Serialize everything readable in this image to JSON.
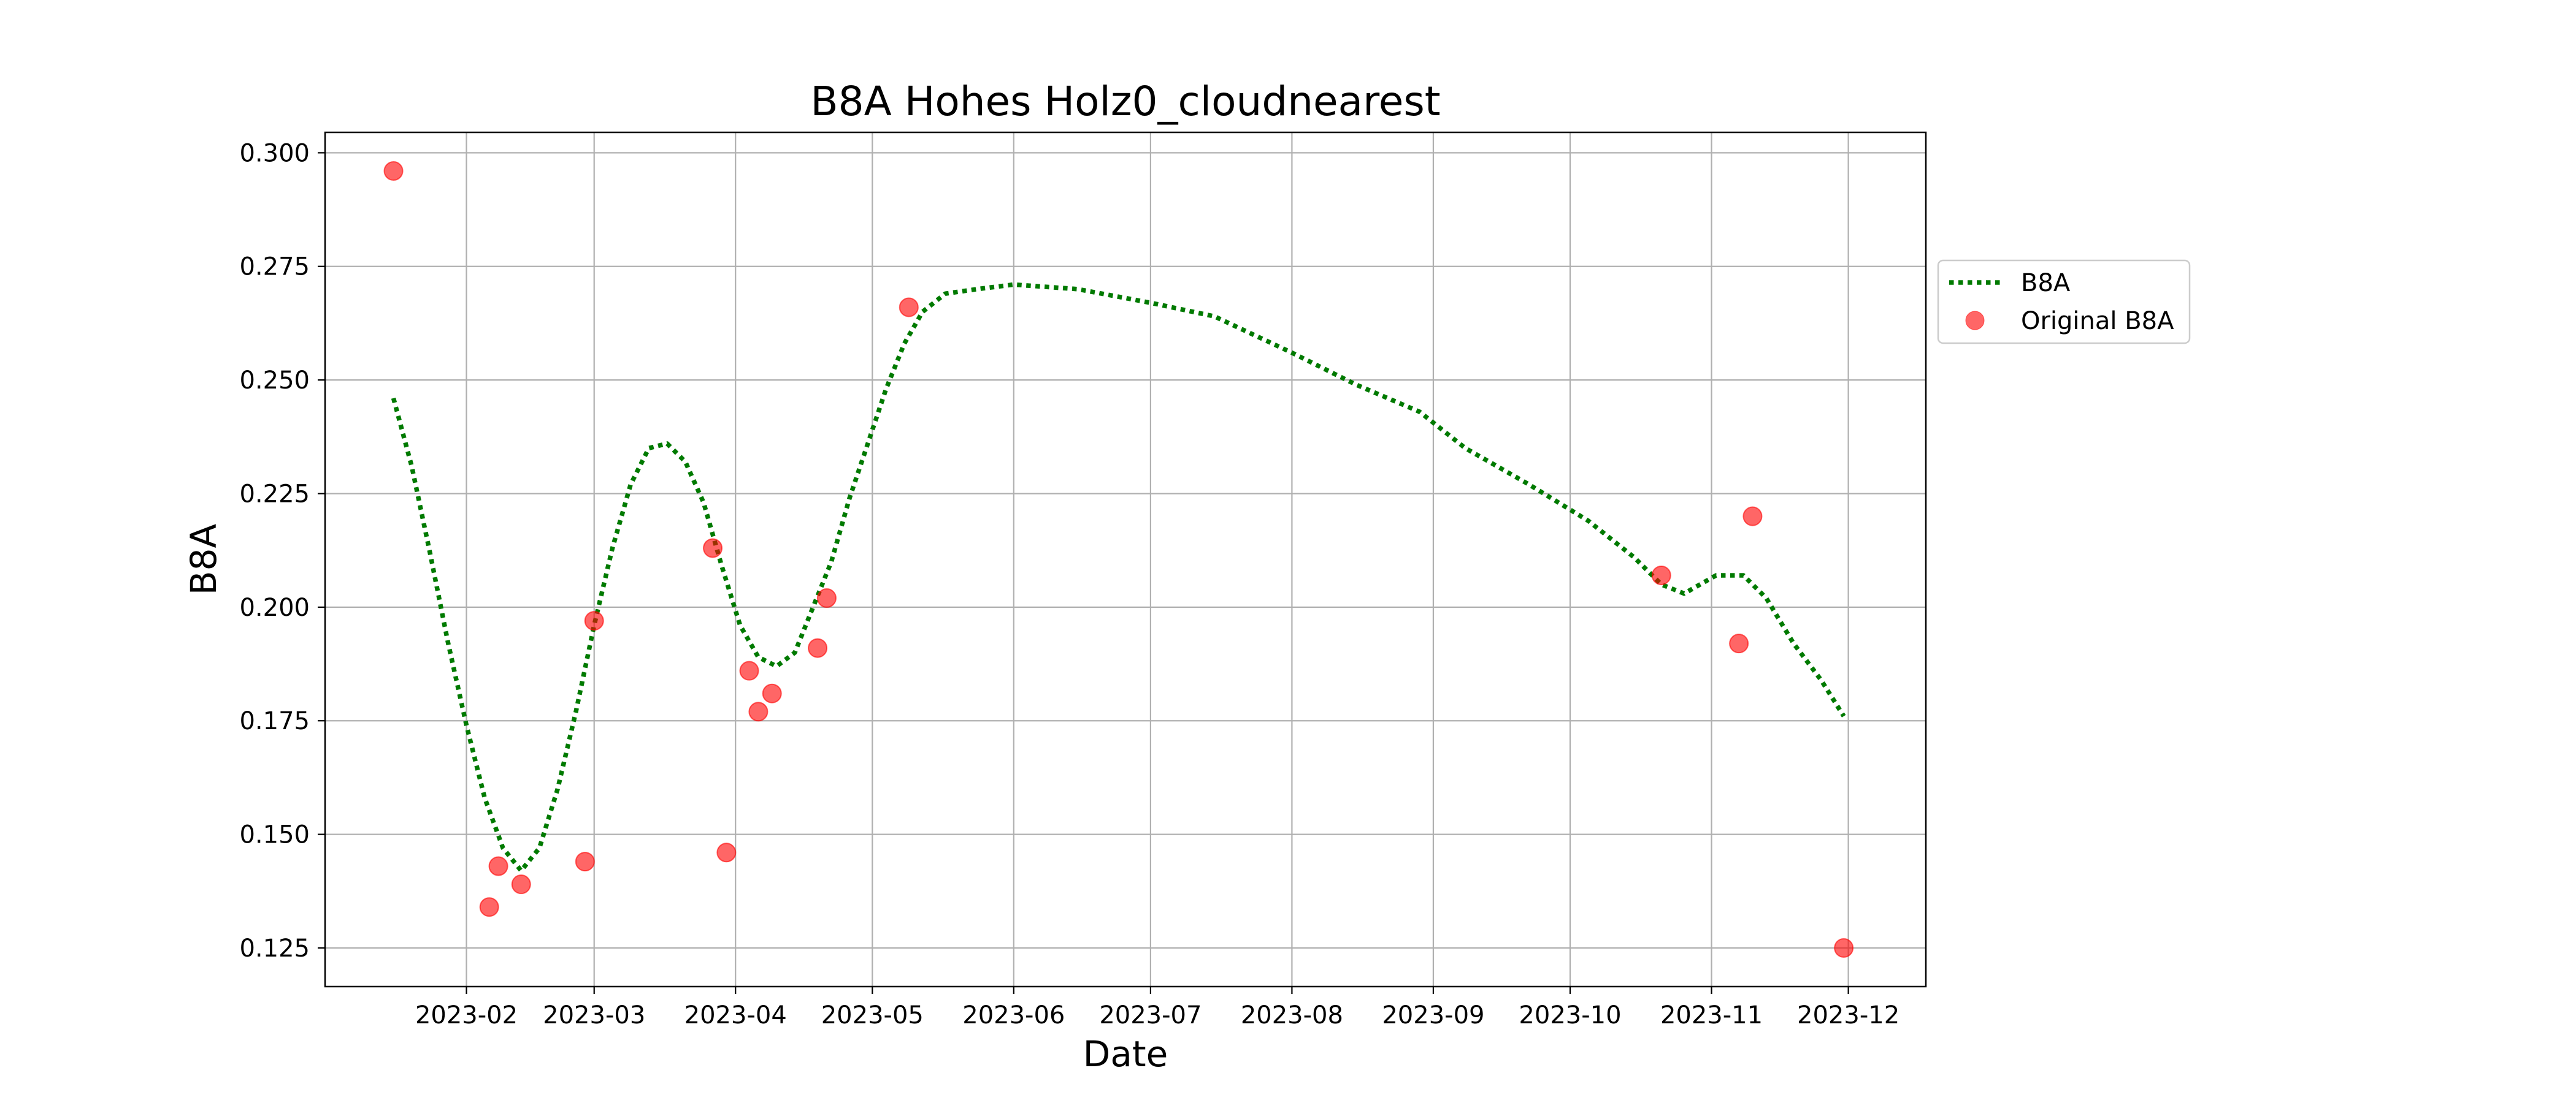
{
  "chart_data": {
    "type": "line",
    "title": "B8A Hohes Holz0_cloudnearest",
    "xlabel": "Date",
    "ylabel": "B8A",
    "x_axis": "date",
    "xlim": [
      "2023-01-01",
      "2023-12-18"
    ],
    "ylim": [
      0.1165,
      0.3045
    ],
    "x_ticks": [
      "2023-02",
      "2023-03",
      "2023-04",
      "2023-05",
      "2023-06",
      "2023-07",
      "2023-08",
      "2023-09",
      "2023-10",
      "2023-11",
      "2023-12"
    ],
    "x_tick_dates": [
      "2023-02-01",
      "2023-03-01",
      "2023-04-01",
      "2023-05-01",
      "2023-06-01",
      "2023-07-01",
      "2023-08-01",
      "2023-09-01",
      "2023-10-01",
      "2023-11-01",
      "2023-12-01"
    ],
    "y_ticks": [
      0.125,
      0.15,
      0.175,
      0.2,
      0.225,
      0.25,
      0.275,
      0.3
    ],
    "y_tick_labels": [
      "0.125",
      "0.150",
      "0.175",
      "0.200",
      "0.225",
      "0.250",
      "0.275",
      "0.300"
    ],
    "grid": true,
    "legend_position": "outside-right",
    "series": [
      {
        "name": "B8A",
        "kind": "line",
        "style": "dotted",
        "color": "#007a00",
        "points": [
          [
            "2023-01-16",
            0.246
          ],
          [
            "2023-01-20",
            0.231
          ],
          [
            "2023-01-24",
            0.212
          ],
          [
            "2023-01-28",
            0.192
          ],
          [
            "2023-02-01",
            0.174
          ],
          [
            "2023-02-05",
            0.158
          ],
          [
            "2023-02-09",
            0.147
          ],
          [
            "2023-02-13",
            0.142
          ],
          [
            "2023-02-17",
            0.147
          ],
          [
            "2023-02-21",
            0.16
          ],
          [
            "2023-02-25",
            0.177
          ],
          [
            "2023-03-01",
            0.196
          ],
          [
            "2023-03-05",
            0.213
          ],
          [
            "2023-03-09",
            0.227
          ],
          [
            "2023-03-13",
            0.235
          ],
          [
            "2023-03-17",
            0.236
          ],
          [
            "2023-03-21",
            0.232
          ],
          [
            "2023-03-25",
            0.223
          ],
          [
            "2023-03-29",
            0.209
          ],
          [
            "2023-04-02",
            0.196
          ],
          [
            "2023-04-06",
            0.189
          ],
          [
            "2023-04-10",
            0.187
          ],
          [
            "2023-04-14",
            0.19
          ],
          [
            "2023-04-18",
            0.2
          ],
          [
            "2023-04-22",
            0.21
          ],
          [
            "2023-04-26",
            0.224
          ],
          [
            "2023-04-30",
            0.236
          ],
          [
            "2023-05-04",
            0.248
          ],
          [
            "2023-05-08",
            0.258
          ],
          [
            "2023-05-12",
            0.265
          ],
          [
            "2023-05-17",
            0.269
          ],
          [
            "2023-05-24",
            0.27
          ],
          [
            "2023-06-01",
            0.271
          ],
          [
            "2023-06-15",
            0.27
          ],
          [
            "2023-07-01",
            0.267
          ],
          [
            "2023-07-15",
            0.264
          ],
          [
            "2023-08-01",
            0.256
          ],
          [
            "2023-08-15",
            0.249
          ],
          [
            "2023-08-29",
            0.243
          ],
          [
            "2023-09-08",
            0.235
          ],
          [
            "2023-09-22",
            0.227
          ],
          [
            "2023-10-05",
            0.219
          ],
          [
            "2023-10-15",
            0.211
          ],
          [
            "2023-10-21",
            0.205
          ],
          [
            "2023-10-26",
            0.203
          ],
          [
            "2023-11-02",
            0.207
          ],
          [
            "2023-11-08",
            0.207
          ],
          [
            "2023-11-13",
            0.202
          ],
          [
            "2023-11-19",
            0.192
          ],
          [
            "2023-11-25",
            0.184
          ],
          [
            "2023-11-30",
            0.176
          ]
        ]
      },
      {
        "name": "Original B8A",
        "kind": "scatter",
        "color": "#ff0000",
        "opacity": 0.6,
        "points": [
          [
            "2023-01-16",
            0.296
          ],
          [
            "2023-02-06",
            0.134
          ],
          [
            "2023-02-08",
            0.143
          ],
          [
            "2023-02-13",
            0.139
          ],
          [
            "2023-02-27",
            0.144
          ],
          [
            "2023-03-01",
            0.197
          ],
          [
            "2023-03-27",
            0.213
          ],
          [
            "2023-03-30",
            0.146
          ],
          [
            "2023-04-04",
            0.186
          ],
          [
            "2023-04-06",
            0.177
          ],
          [
            "2023-04-09",
            0.181
          ],
          [
            "2023-04-19",
            0.191
          ],
          [
            "2023-04-21",
            0.202
          ],
          [
            "2023-05-09",
            0.266
          ],
          [
            "2023-10-21",
            0.207
          ],
          [
            "2023-11-07",
            0.192
          ],
          [
            "2023-11-10",
            0.22
          ],
          [
            "2023-11-30",
            0.125
          ]
        ]
      }
    ]
  }
}
